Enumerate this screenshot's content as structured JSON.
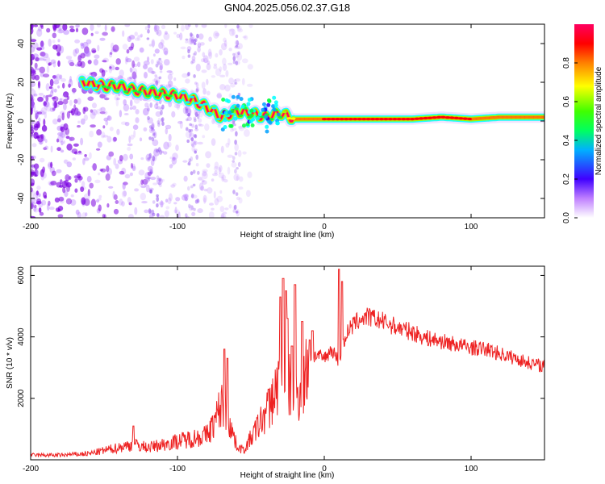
{
  "title": "GN04.2025.056.02.37.G18",
  "colors": {
    "snr_line": "#ee2222",
    "frame": "#000000",
    "colormap": [
      "#ffffff",
      "#8000ff",
      "#2000ff",
      "#00a0ff",
      "#00ffff",
      "#00ff40",
      "#a0ff00",
      "#ffff00",
      "#ff8000",
      "#ff0000",
      "#ff0060"
    ]
  },
  "chart_data": [
    {
      "type": "heatmap",
      "name": "spectrogram",
      "xlabel": "Height of straight line (km)",
      "ylabel": "Frequency (Hz)",
      "xlim": [
        -200,
        150
      ],
      "ylim": [
        -50,
        50
      ],
      "xticks": [
        "-200",
        "-100",
        "0",
        "100"
      ],
      "yticks": [
        "-40",
        "-20",
        "0",
        "20",
        "40"
      ],
      "colorbar": {
        "label": "Normalized spectral amplitude",
        "range": [
          0,
          1
        ],
        "ticks": [
          "0.0",
          "0.2",
          "0.4",
          "0.6",
          "0.8"
        ]
      },
      "ridge": {
        "x": [
          -165,
          -150,
          -140,
          -130,
          -120,
          -110,
          -100,
          -90,
          -80,
          -70,
          -60,
          -50,
          -40,
          -30,
          -20,
          0,
          20,
          40,
          60,
          80,
          100,
          120,
          150
        ],
        "frequency": [
          20,
          18,
          18,
          16,
          15,
          14,
          13,
          11,
          7,
          2,
          5,
          4,
          2,
          4,
          1,
          1,
          1,
          1,
          1,
          2,
          1,
          2,
          2
        ],
        "amplitude": [
          0.35,
          0.45,
          0.5,
          0.5,
          0.45,
          0.45,
          0.45,
          0.4,
          0.4,
          0.4,
          0.45,
          0.45,
          0.45,
          0.5,
          0.75,
          0.85,
          0.9,
          0.9,
          0.85,
          0.85,
          0.85,
          0.8,
          0.75
        ]
      }
    },
    {
      "type": "line",
      "name": "snr",
      "xlabel": "Height of straight line (km)",
      "ylabel": "SNR (10 * v/v)",
      "xlim": [
        -200,
        150
      ],
      "ylim": [
        0,
        6300
      ],
      "xticks": [
        "-200",
        "-100",
        "0",
        "100"
      ],
      "yticks": [
        "2000",
        "4000",
        "6000"
      ],
      "envelope": {
        "x": [
          -200,
          -180,
          -160,
          -150,
          -140,
          -130,
          -120,
          -110,
          -100,
          -90,
          -80,
          -75,
          -70,
          -65,
          -60,
          -55,
          -50,
          -45,
          -40,
          -35,
          -30,
          -25,
          -20,
          -15,
          -10,
          -5,
          0,
          5,
          10,
          15,
          20,
          25,
          30,
          40,
          50,
          60,
          70,
          80,
          90,
          100,
          110,
          120,
          130,
          140,
          150
        ],
        "y": [
          150,
          150,
          200,
          300,
          400,
          500,
          400,
          500,
          600,
          700,
          800,
          1200,
          1800,
          1300,
          500,
          300,
          700,
          1100,
          1500,
          2000,
          2700,
          2500,
          2100,
          2300,
          3300,
          3400,
          3300,
          3600,
          3200,
          4100,
          4400,
          4600,
          4650,
          4500,
          4300,
          4150,
          3950,
          3850,
          3750,
          3650,
          3600,
          3450,
          3300,
          3150,
          3050
        ]
      },
      "spikes": {
        "x": [
          -130,
          -68,
          -66,
          -38,
          -30,
          -28,
          -26,
          -25,
          -22,
          -20,
          -15,
          -10,
          -8,
          10,
          12
        ],
        "y": [
          1100,
          3600,
          3300,
          2300,
          5300,
          5900,
          5500,
          4600,
          3700,
          5700,
          4500,
          3900,
          4200,
          6200,
          5800
        ]
      }
    }
  ]
}
